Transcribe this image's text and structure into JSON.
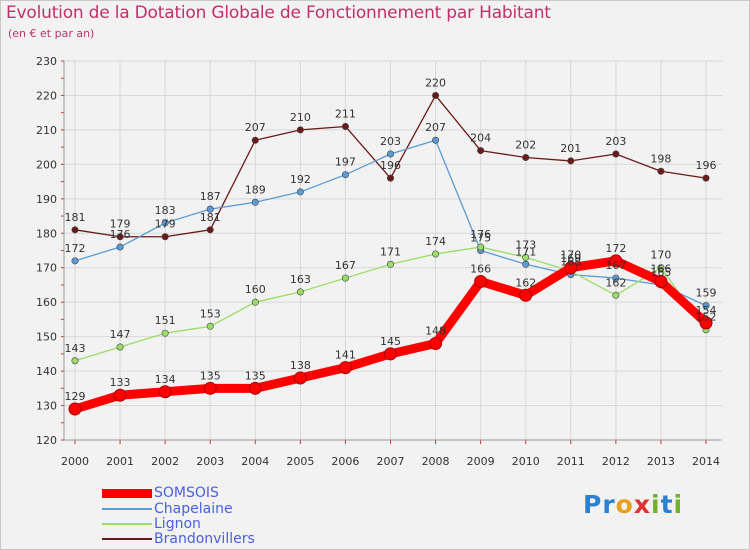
{
  "title": "Evolution de la Dotation Globale de Fonctionnement par Habitant",
  "subtitle": "(en € et par an)",
  "logo": {
    "text": "Proxiti",
    "letters": [
      "P",
      "r",
      "o",
      "x",
      "i",
      "t",
      "i"
    ],
    "colors": [
      "#2c7fd1",
      "#2c7fd1",
      "#e8a020",
      "#e23030",
      "#70b030",
      "#2c7fd1",
      "#70b030"
    ]
  },
  "chart_data": {
    "type": "line",
    "x": [
      "2000",
      "2001",
      "2002",
      "2003",
      "2004",
      "2005",
      "2006",
      "2007",
      "2008",
      "2009",
      "2010",
      "2011",
      "2012",
      "2013",
      "2014"
    ],
    "ylim": [
      120,
      230
    ],
    "yticks": [
      120,
      130,
      140,
      150,
      160,
      170,
      180,
      190,
      200,
      210,
      220,
      230
    ],
    "grid": true,
    "legend_position": "bottom-left",
    "series": [
      {
        "name": "SOMSOIS",
        "color": "#ff0000",
        "values": [
          129,
          133,
          134,
          135,
          135,
          138,
          141,
          145,
          148,
          166,
          162,
          170,
          172,
          166,
          154
        ]
      },
      {
        "name": "Chapelaine",
        "color": "#5b9bd5",
        "values": [
          172,
          176,
          183,
          187,
          189,
          192,
          197,
          203,
          207,
          175,
          171,
          168,
          167,
          165,
          159
        ]
      },
      {
        "name": "Lignon",
        "color": "#99dd66",
        "values": [
          143,
          147,
          151,
          153,
          160,
          163,
          167,
          171,
          174,
          176,
          173,
          169,
          162,
          170,
          152
        ]
      },
      {
        "name": "Brandonvillers",
        "color": "#6b1a1a",
        "values": [
          181,
          179,
          179,
          181,
          207,
          210,
          211,
          196,
          220,
          204,
          202,
          201,
          203,
          198,
          196
        ]
      }
    ]
  }
}
